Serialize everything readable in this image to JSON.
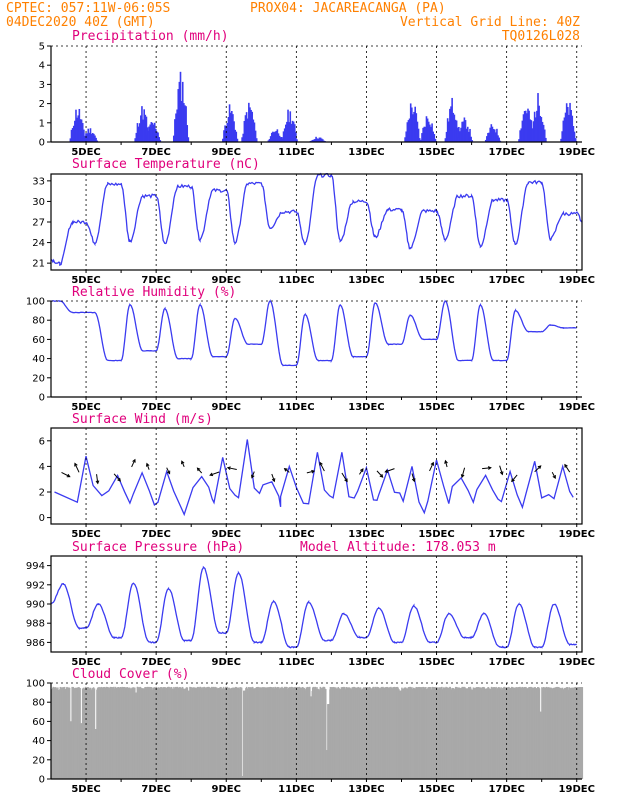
{
  "header": {
    "line1_left": "CPTEC:   057:11W-06:05S",
    "line1_right": "PROX04: JACAREACANGA (PA)",
    "line2_left": "04DEC2020 40Z (GMT)",
    "line2_right": "Vertical Grid Line: 40Z",
    "line3_right": "TQ0126L028"
  },
  "colors": {
    "series": "#3b3bf0",
    "cloud": "#a9a9a9",
    "title": "#e0007c",
    "header": "#ff8000"
  },
  "x_ticks": [
    "5DEC",
    "7DEC",
    "9DEC",
    "11DEC",
    "13DEC",
    "15DEC",
    "17DEC",
    "19DEC"
  ],
  "chart_data": [
    {
      "type": "bar",
      "title": "Precipitation (mm/h)",
      "ylim": [
        0,
        5
      ],
      "yticks": [
        "0",
        "1",
        "2",
        "3",
        "4",
        "5"
      ],
      "bursts": [
        {
          "day": 4.75,
          "height": 2.0
        },
        {
          "day": 5.1,
          "height": 0.8
        },
        {
          "day": 6.6,
          "height": 2.0
        },
        {
          "day": 6.9,
          "height": 1.2
        },
        {
          "day": 7.7,
          "height": 3.8
        },
        {
          "day": 9.1,
          "height": 2.0
        },
        {
          "day": 9.65,
          "height": 2.2
        },
        {
          "day": 10.4,
          "height": 0.8
        },
        {
          "day": 10.8,
          "height": 1.8
        },
        {
          "day": 11.6,
          "height": 0.3
        },
        {
          "day": 14.3,
          "height": 2.3
        },
        {
          "day": 14.75,
          "height": 1.6
        },
        {
          "day": 15.45,
          "height": 2.4
        },
        {
          "day": 15.8,
          "height": 1.3
        },
        {
          "day": 16.6,
          "height": 1.0
        },
        {
          "day": 17.55,
          "height": 2.2
        },
        {
          "day": 17.9,
          "height": 2.6
        },
        {
          "day": 18.75,
          "height": 2.2
        }
      ]
    },
    {
      "type": "line",
      "title": "Surface Temperature (nC)",
      "ylim": [
        20,
        34
      ],
      "yticks": [
        "21",
        "24",
        "27",
        "30",
        "33"
      ],
      "y0": 21.5,
      "start": 4.0,
      "days": [
        {
          "min": 20.9,
          "max": 27.0
        },
        {
          "min": 24.0,
          "max": 32.5
        },
        {
          "min": 24.2,
          "max": 30.8
        },
        {
          "min": 23.8,
          "max": 32.2
        },
        {
          "min": 24.5,
          "max": 31.6
        },
        {
          "min": 24.0,
          "max": 32.6
        },
        {
          "min": 26.2,
          "max": 28.5
        },
        {
          "min": 23.8,
          "max": 33.8
        },
        {
          "min": 24.2,
          "max": 30.0
        },
        {
          "min": 24.8,
          "max": 28.8
        },
        {
          "min": 23.2,
          "max": 28.6
        },
        {
          "min": 24.5,
          "max": 30.8
        },
        {
          "min": 23.5,
          "max": 30.2
        },
        {
          "min": 23.8,
          "max": 32.8
        },
        {
          "min": 24.5,
          "max": 28.2
        },
        {
          "min": 26.0,
          "max": 28.2
        }
      ]
    },
    {
      "type": "line",
      "title": "Relative Humidity (%)",
      "ylim": [
        0,
        100
      ],
      "yticks": [
        "0",
        "20",
        "40",
        "60",
        "80",
        "100"
      ],
      "y0": 100,
      "start": 4.0,
      "days": [
        {
          "min": 88,
          "max": 100
        },
        {
          "min": 38,
          "max": 88
        },
        {
          "min": 48,
          "max": 96
        },
        {
          "min": 40,
          "max": 92
        },
        {
          "min": 42,
          "max": 96
        },
        {
          "min": 55,
          "max": 82
        },
        {
          "min": 33,
          "max": 100
        },
        {
          "min": 38,
          "max": 86
        },
        {
          "min": 42,
          "max": 96
        },
        {
          "min": 55,
          "max": 98
        },
        {
          "min": 60,
          "max": 85
        },
        {
          "min": 38,
          "max": 100
        },
        {
          "min": 38,
          "max": 96
        },
        {
          "min": 68,
          "max": 90
        },
        {
          "min": 72,
          "max": 75
        }
      ]
    },
    {
      "type": "line",
      "title": "Surface Wind (m/s)",
      "ylim": [
        -0.5,
        7
      ],
      "yticks": [
        "0",
        "2",
        "4",
        "6"
      ],
      "peaks": [
        {
          "day": 5.0,
          "value": 4.8
        },
        {
          "day": 5.9,
          "value": 3.3
        },
        {
          "day": 6.6,
          "value": 3.5
        },
        {
          "day": 7.3,
          "value": 3.6
        },
        {
          "day": 8.3,
          "value": 3.2
        },
        {
          "day": 8.9,
          "value": 4.7
        },
        {
          "day": 9.6,
          "value": 6.1
        },
        {
          "day": 10.3,
          "value": 2.8
        },
        {
          "day": 10.8,
          "value": 4.0
        },
        {
          "day": 11.6,
          "value": 5.1
        },
        {
          "day": 12.3,
          "value": 5.1
        },
        {
          "day": 13.0,
          "value": 3.9
        },
        {
          "day": 13.6,
          "value": 3.7
        },
        {
          "day": 14.3,
          "value": 4.0
        },
        {
          "day": 15.0,
          "value": 4.5
        },
        {
          "day": 15.7,
          "value": 3.1
        },
        {
          "day": 16.4,
          "value": 3.3
        },
        {
          "day": 17.1,
          "value": 3.6
        },
        {
          "day": 17.8,
          "value": 4.4
        },
        {
          "day": 18.6,
          "value": 4.0
        }
      ]
    },
    {
      "type": "line",
      "title": "Surface Pressure (hPa)",
      "subtitle": "Model Altitude: 178.053 m",
      "ylim": [
        985,
        995
      ],
      "yticks": [
        "986",
        "988",
        "990",
        "992",
        "994"
      ],
      "y0": 990,
      "start": 4.0,
      "days": [
        {
          "max": 992.1,
          "min": 987.5
        },
        {
          "max": 990.0,
          "min": 986.5
        },
        {
          "max": 992.2,
          "min": 986.0
        },
        {
          "max": 991.6,
          "min": 986.2
        },
        {
          "max": 993.8,
          "min": 987.0
        },
        {
          "max": 993.2,
          "min": 986.0
        },
        {
          "max": 990.3,
          "min": 985.5
        },
        {
          "max": 990.2,
          "min": 986.2
        },
        {
          "max": 989.0,
          "min": 986.5
        },
        {
          "max": 989.6,
          "min": 986.0
        },
        {
          "max": 989.8,
          "min": 986.0
        },
        {
          "max": 989.0,
          "min": 986.5
        },
        {
          "max": 989.0,
          "min": 985.5
        },
        {
          "max": 990.0,
          "min": 985.5
        },
        {
          "max": 990.0,
          "min": 985.8
        }
      ]
    },
    {
      "type": "area",
      "title": "Cloud Cover (%)",
      "ylim": [
        0,
        100
      ],
      "yticks": [
        "0",
        "20",
        "40",
        "60",
        "80",
        "100"
      ],
      "baseline": 97,
      "dips": [
        {
          "day": 4.55,
          "value": 60
        },
        {
          "day": 4.85,
          "value": 58
        },
        {
          "day": 5.25,
          "value": 52
        },
        {
          "day": 6.4,
          "value": 90
        },
        {
          "day": 7.9,
          "value": 92
        },
        {
          "day": 9.45,
          "value": 3
        },
        {
          "day": 9.5,
          "value": 92
        },
        {
          "day": 11.4,
          "value": 86
        },
        {
          "day": 11.85,
          "value": 30
        },
        {
          "day": 11.9,
          "value": 78
        },
        {
          "day": 13.95,
          "value": 92
        },
        {
          "day": 16.0,
          "value": 93
        },
        {
          "day": 17.95,
          "value": 70
        },
        {
          "day": 18.85,
          "value": 95
        }
      ]
    }
  ]
}
